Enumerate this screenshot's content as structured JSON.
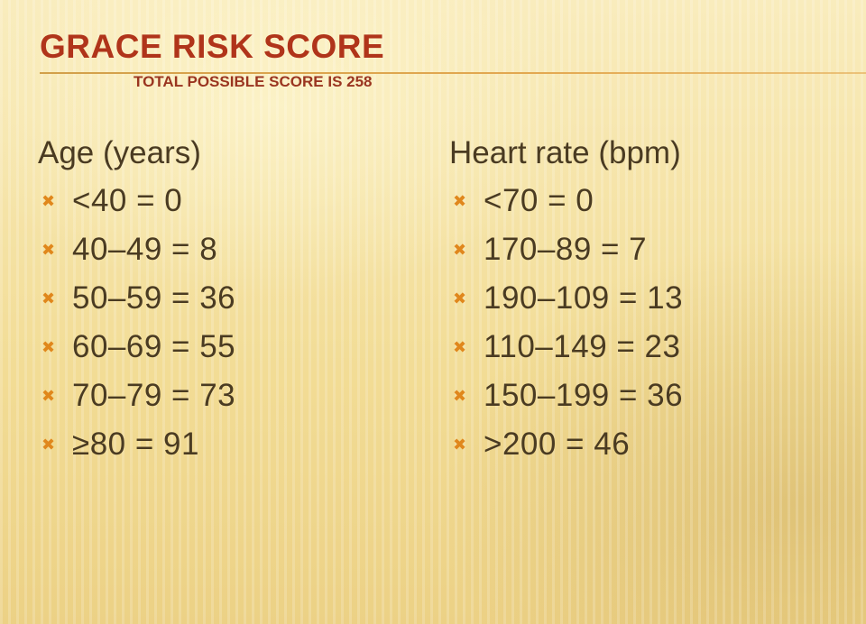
{
  "slide": {
    "title": "GRACE RISK SCORE",
    "subtitle": "TOTAL POSSIBLE SCORE IS 258"
  },
  "age": {
    "heading": "Age (years)",
    "items": [
      "<40 = 0",
      "40–49 = 8",
      "50–59 = 36",
      "60–69 = 55",
      "70–79 = 73",
      "≥80 = 91"
    ]
  },
  "heart_rate": {
    "heading": "Heart rate (bpm)",
    "items": [
      "<70 = 0",
      "170–89 = 7",
      "190–109 = 13",
      "110–149 = 23",
      "150–199 = 36",
      ">200 = 46"
    ]
  },
  "bullet_glyph": "✖",
  "colors": {
    "title": "#b0341a",
    "bullet": "#e0871c",
    "body_text": "#4a3b22",
    "background": "#f6e3a3"
  }
}
